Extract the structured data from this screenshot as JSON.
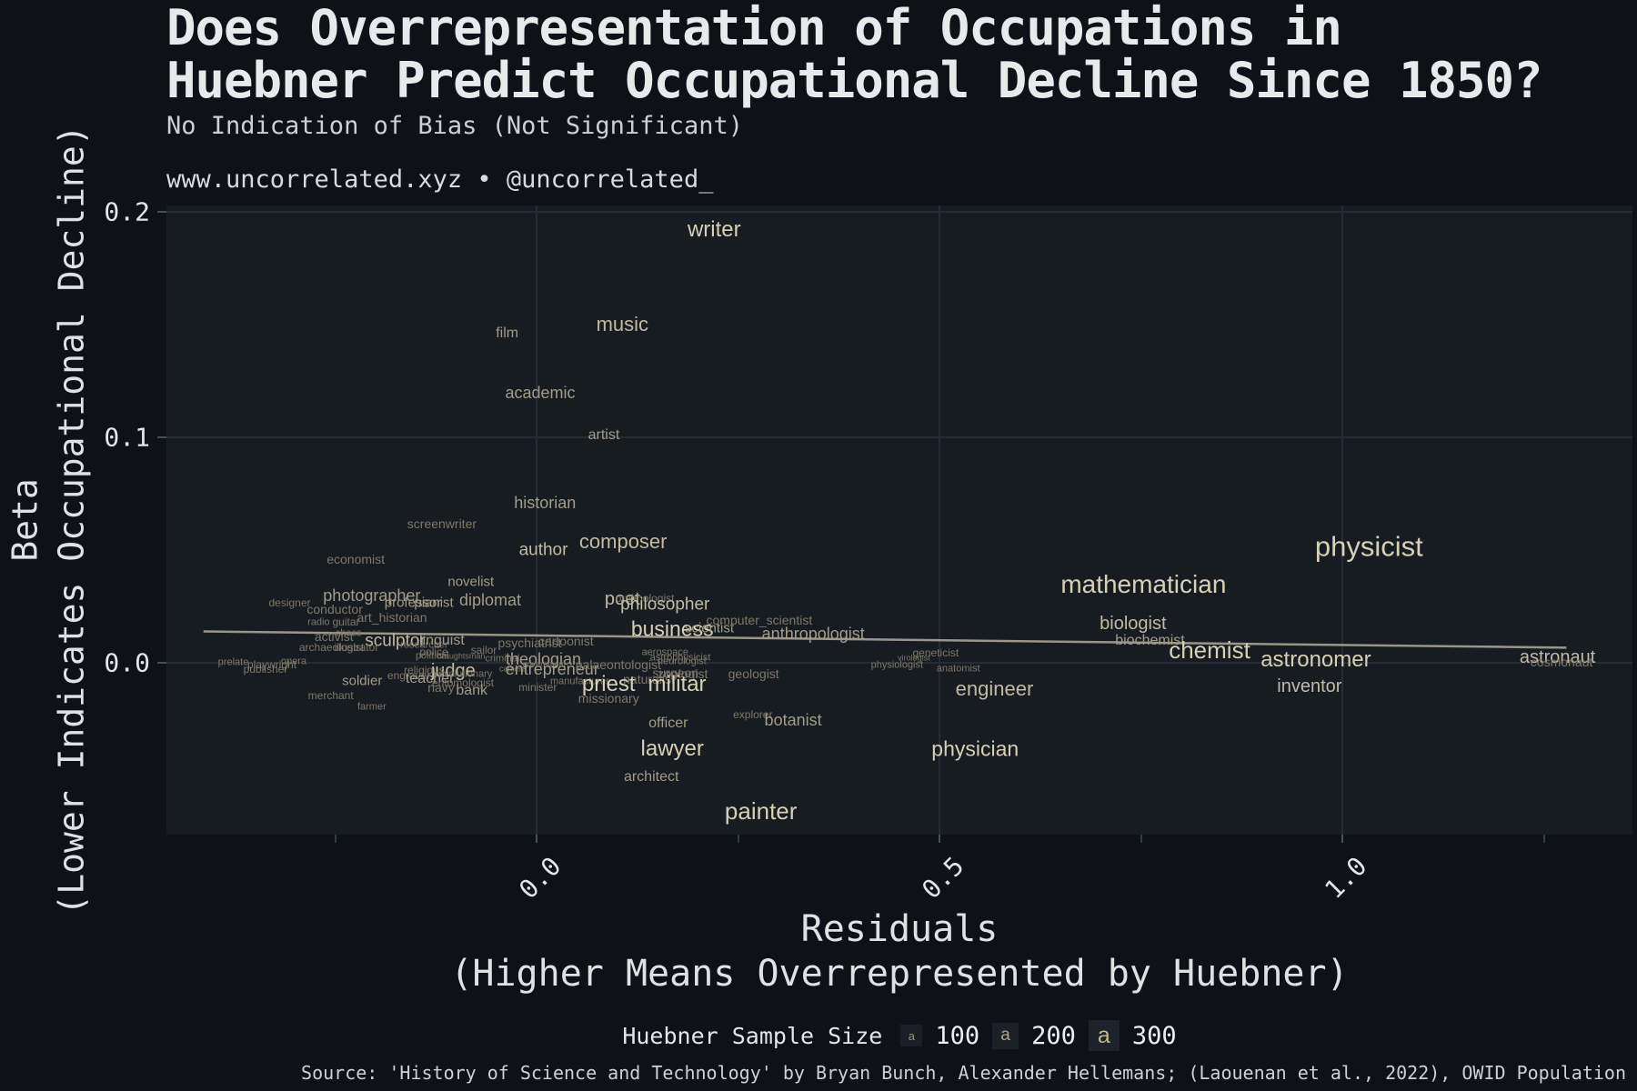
{
  "title": {
    "line1": "Does Overrepresentation of Occupations in",
    "line2": "Huebner Predict Occupational Decline Since 1850?"
  },
  "subtitle": "No Indication of Bias (Not Significant)",
  "caption": "www.uncorrelated.xyz • @uncorrelated_",
  "source": "Source: 'History of Science and Technology' by Bryan Bunch, Alexander Hellemans; (Laouenan et al., 2022), OWID Population",
  "legend": {
    "title": "Huebner Sample Size",
    "marker": "a",
    "items": [
      {
        "label": "100",
        "size": 100
      },
      {
        "label": "200",
        "size": 200
      },
      {
        "label": "300",
        "size": 300
      }
    ]
  },
  "colors": {
    "background": "#0e1117",
    "panel": "#171b22",
    "gridline": "#272c34",
    "label_bright": "#d8d0b4",
    "label_dim": "#7d7867",
    "trend": "#b3ac99",
    "legend_marker": "#c2b58e",
    "text": "#e7e9ea"
  },
  "chart_data": {
    "type": "scatter",
    "title": "Does Overrepresentation of Occupations in Huebner Predict Occupational Decline Since 1850?",
    "subtitle": "No Indication of Bias (Not Significant)",
    "xlabel_lines": [
      "Residuals",
      "(Higher Means Overrepresented by Huebner)"
    ],
    "ylabel_lines": [
      "Beta",
      "(Lower Indicates Occupational Decline)"
    ],
    "xlim": [
      -0.46,
      1.36
    ],
    "ylim": [
      -0.076,
      0.203
    ],
    "grid": true,
    "legend_position": "bottom",
    "x_ticks": [
      {
        "v": 0.0,
        "label": "0.0"
      },
      {
        "v": 0.5,
        "label": "0.5"
      },
      {
        "v": 1.0,
        "label": "1.0"
      }
    ],
    "x_minor_ticks": [
      -0.25,
      0.25,
      0.75,
      1.25
    ],
    "y_ticks": [
      {
        "v": 0.0,
        "label": "0.0"
      },
      {
        "v": 0.1,
        "label": "0.1"
      },
      {
        "v": 0.2,
        "label": "0.2"
      }
    ],
    "trend": {
      "x1": -0.414,
      "y1": 0.0141,
      "x2": 1.278,
      "y2": 0.0069
    },
    "points": [
      {
        "label": "writer",
        "x": 0.22,
        "y": 0.192,
        "s": 18
      },
      {
        "label": "music",
        "x": 0.106,
        "y": 0.15,
        "s": 16
      },
      {
        "label": "film",
        "x": -0.037,
        "y": 0.146,
        "s": 12
      },
      {
        "label": "academic",
        "x": 0.004,
        "y": 0.12,
        "s": 13
      },
      {
        "label": "artist",
        "x": 0.083,
        "y": 0.101,
        "s": 12
      },
      {
        "label": "historian",
        "x": 0.01,
        "y": 0.071,
        "s": 13
      },
      {
        "label": "screenwriter",
        "x": -0.118,
        "y": 0.062,
        "s": 10
      },
      {
        "label": "author",
        "x": 0.008,
        "y": 0.05,
        "s": 14
      },
      {
        "label": "composer",
        "x": 0.107,
        "y": 0.054,
        "s": 16
      },
      {
        "label": "economist",
        "x": -0.225,
        "y": 0.046,
        "s": 10
      },
      {
        "label": "novelist",
        "x": -0.082,
        "y": 0.036,
        "s": 11
      },
      {
        "label": "photographer",
        "x": -0.205,
        "y": 0.03,
        "s": 13
      },
      {
        "label": "designer",
        "x": -0.307,
        "y": 0.027,
        "s": 9
      },
      {
        "label": "professor",
        "x": -0.154,
        "y": 0.027,
        "s": 11
      },
      {
        "label": "pianist",
        "x": -0.128,
        "y": 0.027,
        "s": 11
      },
      {
        "label": "diplomat",
        "x": -0.058,
        "y": 0.028,
        "s": 13
      },
      {
        "label": "conductor",
        "x": -0.251,
        "y": 0.024,
        "s": 10
      },
      {
        "label": "art_historian",
        "x": -0.18,
        "y": 0.0205,
        "s": 10
      },
      {
        "label": "radio",
        "x": -0.271,
        "y": 0.018,
        "s": 8
      },
      {
        "label": "guitar",
        "x": -0.237,
        "y": 0.0185,
        "s": 9
      },
      {
        "label": "poet",
        "x": 0.106,
        "y": 0.0285,
        "s": 15
      },
      {
        "label": "ornithologist",
        "x": 0.134,
        "y": 0.029,
        "s": 9
      },
      {
        "label": "philosopher",
        "x": 0.159,
        "y": 0.026,
        "s": 14
      },
      {
        "label": "business",
        "x": 0.168,
        "y": 0.015,
        "s": 17
      },
      {
        "label": "scientist",
        "x": 0.214,
        "y": 0.0155,
        "s": 11
      },
      {
        "label": "computer_scientist",
        "x": 0.276,
        "y": 0.019,
        "s": 10
      },
      {
        "label": "anthropologist",
        "x": 0.343,
        "y": 0.013,
        "s": 13
      },
      {
        "label": "chess",
        "x": -0.234,
        "y": 0.0133,
        "s": 8
      },
      {
        "label": "activist",
        "x": -0.252,
        "y": 0.0117,
        "s": 10
      },
      {
        "label": "sculptor",
        "x": -0.176,
        "y": 0.01,
        "s": 14
      },
      {
        "label": "researcher",
        "x": -0.14,
        "y": 0.008,
        "s": 8
      },
      {
        "label": "linguist",
        "x": -0.118,
        "y": 0.01,
        "s": 12
      },
      {
        "label": "archaeologist",
        "x": -0.255,
        "y": 0.007,
        "s": 9
      },
      {
        "label": "illustrator",
        "x": -0.224,
        "y": 0.007,
        "s": 9
      },
      {
        "label": "psychiatrist",
        "x": -0.009,
        "y": 0.009,
        "s": 10
      },
      {
        "label": "cartoonist",
        "x": 0.036,
        "y": 0.01,
        "s": 10
      },
      {
        "label": "police",
        "x": -0.128,
        "y": 0.005,
        "s": 9
      },
      {
        "label": "sailor",
        "x": -0.066,
        "y": 0.006,
        "s": 9
      },
      {
        "label": "political",
        "x": -0.13,
        "y": 0.003,
        "s": 8
      },
      {
        "label": "draughtsman",
        "x": -0.094,
        "y": 0.003,
        "s": 7
      },
      {
        "label": "prelate",
        "x": -0.377,
        "y": 0.0004,
        "s": 8
      },
      {
        "label": "playwright",
        "x": -0.329,
        "y": -0.0005,
        "s": 9
      },
      {
        "label": "opera",
        "x": -0.302,
        "y": 0.0008,
        "s": 8
      },
      {
        "label": "publisher",
        "x": -0.337,
        "y": -0.0028,
        "s": 9
      },
      {
        "label": "criminal",
        "x": -0.043,
        "y": 0.002,
        "s": 8
      },
      {
        "label": "theologian",
        "x": 0.008,
        "y": 0.002,
        "s": 13
      },
      {
        "label": "government",
        "x": 0.009,
        "y": -0.0008,
        "s": 7
      },
      {
        "label": "camera",
        "x": -0.03,
        "y": -0.0028,
        "s": 7
      },
      {
        "label": "entrepreneur",
        "x": 0.019,
        "y": -0.0028,
        "s": 13
      },
      {
        "label": "judge",
        "x": -0.104,
        "y": -0.0033,
        "s": 15
      },
      {
        "label": "religious",
        "x": -0.14,
        "y": -0.003,
        "s": 9
      },
      {
        "label": "engraver",
        "x": -0.159,
        "y": -0.0056,
        "s": 9
      },
      {
        "label": "teacher",
        "x": -0.133,
        "y": -0.0069,
        "s": 12
      },
      {
        "label": "revolutionary",
        "x": -0.091,
        "y": -0.0049,
        "s": 8
      },
      {
        "label": "entomologist",
        "x": -0.092,
        "y": -0.0085,
        "s": 9
      },
      {
        "label": "navy",
        "x": -0.119,
        "y": -0.0105,
        "s": 10
      },
      {
        "label": "bank",
        "x": -0.081,
        "y": -0.0121,
        "s": 12
      },
      {
        "label": "minister",
        "x": 0.001,
        "y": -0.0105,
        "s": 9
      },
      {
        "label": "soldier",
        "x": -0.217,
        "y": -0.008,
        "s": 11
      },
      {
        "label": "merchant",
        "x": -0.256,
        "y": -0.0142,
        "s": 9
      },
      {
        "label": "farmer",
        "x": -0.205,
        "y": -0.0194,
        "s": 8
      },
      {
        "label": "palaeontologist",
        "x": 0.101,
        "y": -0.0005,
        "s": 10
      },
      {
        "label": "aerospace",
        "x": 0.159,
        "y": 0.0046,
        "s": 8
      },
      {
        "label": "astrophysicist",
        "x": 0.178,
        "y": 0.0023,
        "s": 8
      },
      {
        "label": "neurologist",
        "x": 0.18,
        "y": 0.0005,
        "s": 8
      },
      {
        "label": "surgeon",
        "x": 0.172,
        "y": -0.0044,
        "s": 10
      },
      {
        "label": "zoologist",
        "x": 0.181,
        "y": -0.0046,
        "s": 10
      },
      {
        "label": "naturalist",
        "x": 0.139,
        "y": -0.0069,
        "s": 10
      },
      {
        "label": "manufacturer",
        "x": 0.053,
        "y": -0.0083,
        "s": 8
      },
      {
        "label": "priest",
        "x": 0.089,
        "y": -0.0093,
        "s": 18
      },
      {
        "label": "militar",
        "x": 0.174,
        "y": -0.0093,
        "s": 18
      },
      {
        "label": "missionary",
        "x": 0.089,
        "y": -0.0157,
        "s": 10
      },
      {
        "label": "officer",
        "x": 0.163,
        "y": -0.0269,
        "s": 12
      },
      {
        "label": "explorer",
        "x": 0.268,
        "y": -0.0227,
        "s": 9
      },
      {
        "label": "botanist",
        "x": 0.318,
        "y": -0.025,
        "s": 13
      },
      {
        "label": "geologist",
        "x": 0.269,
        "y": -0.0046,
        "s": 10
      },
      {
        "label": "lawyer",
        "x": 0.168,
        "y": -0.038,
        "s": 18
      },
      {
        "label": "architect",
        "x": 0.142,
        "y": -0.0505,
        "s": 12
      },
      {
        "label": "painter",
        "x": 0.278,
        "y": -0.0657,
        "s": 19
      },
      {
        "label": "physician",
        "x": 0.544,
        "y": -0.038,
        "s": 17
      },
      {
        "label": "engineer",
        "x": 0.568,
        "y": -0.0113,
        "s": 16
      },
      {
        "label": "physiologist",
        "x": 0.447,
        "y": -0.0009,
        "s": 8
      },
      {
        "label": "virologist",
        "x": 0.468,
        "y": 0.0023,
        "s": 7
      },
      {
        "label": "geneticist",
        "x": 0.495,
        "y": 0.0046,
        "s": 9
      },
      {
        "label": "anatomist",
        "x": 0.523,
        "y": -0.0028,
        "s": 8
      },
      {
        "label": "mathematician",
        "x": 0.753,
        "y": 0.035,
        "s": 21
      },
      {
        "label": "biologist",
        "x": 0.74,
        "y": 0.0176,
        "s": 15
      },
      {
        "label": "biochemist",
        "x": 0.761,
        "y": 0.0097,
        "s": 12
      },
      {
        "label": "chemist",
        "x": 0.835,
        "y": 0.006,
        "s": 19
      },
      {
        "label": "astronomer",
        "x": 0.967,
        "y": 0.0014,
        "s": 18
      },
      {
        "label": "inventor",
        "x": 0.959,
        "y": -0.0102,
        "s": 15
      },
      {
        "label": "physicist",
        "x": 1.033,
        "y": 0.052,
        "s": 23
      },
      {
        "label": "astronaut",
        "x": 1.267,
        "y": 0.0028,
        "s": 15
      },
      {
        "label": "cosmonaut",
        "x": 1.272,
        "y": 0.0005,
        "s": 10
      }
    ]
  }
}
